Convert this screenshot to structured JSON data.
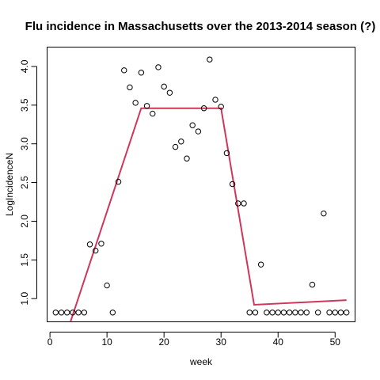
{
  "chart_data": {
    "type": "scatter",
    "title": "Flu incidence in Massachusetts over the 2013-2014 season (?)",
    "xlabel": "week",
    "ylabel": "LogIncidenceN",
    "xlim": [
      -0.5,
      53.5
    ],
    "ylim": [
      0.7,
      4.25
    ],
    "xticks": [
      0,
      10,
      20,
      30,
      40,
      50
    ],
    "yticks": [
      "1.0",
      "1.5",
      "2.0",
      "2.5",
      "3.0",
      "3.5",
      "4.0"
    ],
    "grid": false,
    "legend": "none",
    "points": [
      {
        "x": 1,
        "y": 0.82
      },
      {
        "x": 2,
        "y": 0.82
      },
      {
        "x": 3,
        "y": 0.82
      },
      {
        "x": 4,
        "y": 0.82
      },
      {
        "x": 5,
        "y": 0.82
      },
      {
        "x": 6,
        "y": 0.82
      },
      {
        "x": 7,
        "y": 1.7
      },
      {
        "x": 8,
        "y": 1.62
      },
      {
        "x": 9,
        "y": 1.71
      },
      {
        "x": 10,
        "y": 1.17
      },
      {
        "x": 11,
        "y": 0.82
      },
      {
        "x": 12,
        "y": 2.51
      },
      {
        "x": 13,
        "y": 3.95
      },
      {
        "x": 14,
        "y": 3.73
      },
      {
        "x": 15,
        "y": 3.53
      },
      {
        "x": 16,
        "y": 3.92
      },
      {
        "x": 17,
        "y": 3.49
      },
      {
        "x": 18,
        "y": 3.39
      },
      {
        "x": 19,
        "y": 3.99
      },
      {
        "x": 20,
        "y": 3.74
      },
      {
        "x": 21,
        "y": 3.66
      },
      {
        "x": 22,
        "y": 2.96
      },
      {
        "x": 23,
        "y": 3.03
      },
      {
        "x": 24,
        "y": 2.81
      },
      {
        "x": 25,
        "y": 3.24
      },
      {
        "x": 26,
        "y": 3.16
      },
      {
        "x": 27,
        "y": 3.46
      },
      {
        "x": 28,
        "y": 4.09
      },
      {
        "x": 29,
        "y": 3.57
      },
      {
        "x": 30,
        "y": 3.48
      },
      {
        "x": 31,
        "y": 2.88
      },
      {
        "x": 32,
        "y": 2.48
      },
      {
        "x": 33,
        "y": 2.23
      },
      {
        "x": 34,
        "y": 2.23
      },
      {
        "x": 35,
        "y": 0.82
      },
      {
        "x": 36,
        "y": 0.82
      },
      {
        "x": 37,
        "y": 1.44
      },
      {
        "x": 38,
        "y": 0.82
      },
      {
        "x": 39,
        "y": 0.82
      },
      {
        "x": 40,
        "y": 0.82
      },
      {
        "x": 41,
        "y": 0.82
      },
      {
        "x": 42,
        "y": 0.82
      },
      {
        "x": 43,
        "y": 0.82
      },
      {
        "x": 44,
        "y": 0.82
      },
      {
        "x": 45,
        "y": 0.82
      },
      {
        "x": 46,
        "y": 1.18
      },
      {
        "x": 47,
        "y": 0.82
      },
      {
        "x": 48,
        "y": 2.1
      },
      {
        "x": 49,
        "y": 0.82
      },
      {
        "x": 50,
        "y": 0.82
      },
      {
        "x": 51,
        "y": 0.82
      },
      {
        "x": 52,
        "y": 0.82
      }
    ],
    "fit_line": {
      "color": "#d0365a",
      "points": [
        {
          "x": 3.6,
          "y": 0.7
        },
        {
          "x": 16,
          "y": 3.46
        },
        {
          "x": 30,
          "y": 3.46
        },
        {
          "x": 35.8,
          "y": 0.92
        },
        {
          "x": 52,
          "y": 0.98
        }
      ]
    }
  }
}
